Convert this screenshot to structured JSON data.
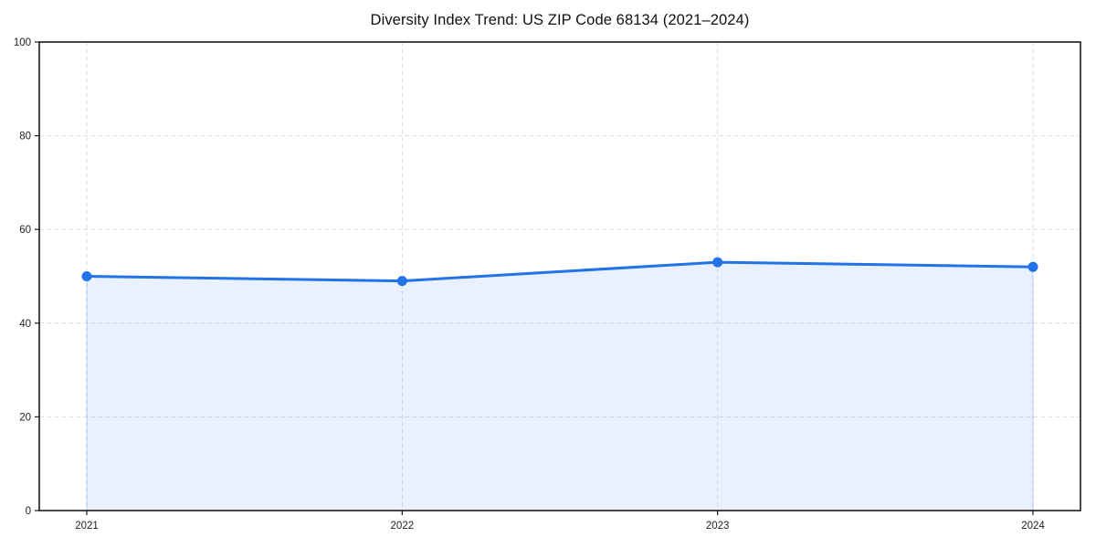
{
  "chart_data": {
    "type": "line",
    "title": "Diversity Index Trend: US ZIP Code 68134 (2021–2024)",
    "x": [
      "2021",
      "2022",
      "2023",
      "2024"
    ],
    "series": [
      {
        "name": "Diversity Index",
        "values": [
          50,
          49,
          53,
          52
        ]
      }
    ],
    "xlabel": "",
    "ylabel": "",
    "ylim": [
      0,
      100
    ],
    "yticks": [
      0,
      20,
      40,
      60,
      80,
      100
    ],
    "grid": true,
    "grid_style": "dashed",
    "legend": false,
    "colors": {
      "line": "#2272e8",
      "marker": "#2272e8",
      "area_fill": "rgba(34,114,232,0.10)",
      "area_edge": "rgba(34,114,232,0.28)",
      "grid": "#dedede",
      "axis": "#1a1a1a",
      "tick_text": "#222222",
      "background": "#ffffff"
    }
  }
}
